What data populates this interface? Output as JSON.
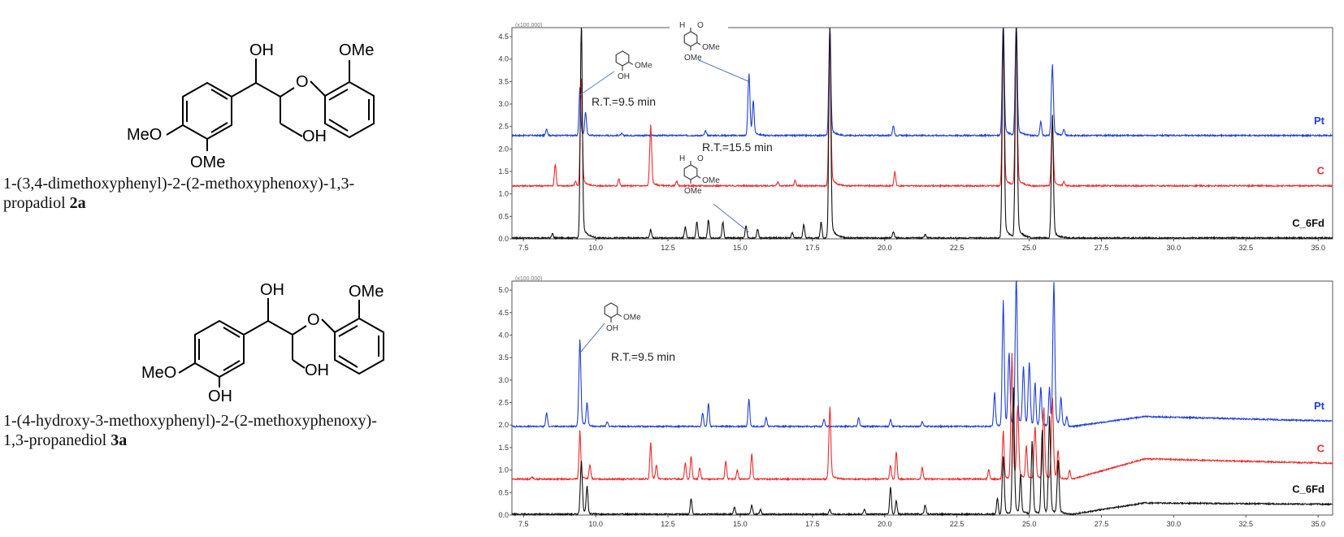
{
  "structures": [
    {
      "name_line1": "1-(3,4-dimethoxyphenyl)-2-(2-methoxyphenoxy)-1,3-",
      "name_line2": "propadiol",
      "compound_id": "2a",
      "labels": {
        "oh_top": "OH",
        "ome_ring": "OMe",
        "meo": "MeO",
        "ome_bottom": "OMe",
        "oh_side": "OH",
        "o_ether": "O"
      }
    },
    {
      "name_line1": "1-(4-hydroxy-3-methoxyphenyl)-2-(2-methoxyphenoxy)-",
      "name_line2": "1,3-propanediol",
      "compound_id": "3a",
      "labels": {
        "oh_top": "OH",
        "ome_ring": "OMe",
        "meo": "MeO",
        "oh_bottom": "OH",
        "oh_side": "OH",
        "o_ether": "O"
      }
    }
  ],
  "chart_data": [
    {
      "type": "line",
      "scale_note": "(x100,000)",
      "x_ticks": [
        "7.5",
        "10.0",
        "12.5",
        "15.0",
        "17.5",
        "20.0",
        "22.5",
        "25.0",
        "27.5",
        "30.0",
        "32.5",
        "35.0"
      ],
      "y_ticks": [
        "0.0",
        "0.5",
        "1.0",
        "1.5",
        "2.0",
        "2.5",
        "3.0",
        "3.5",
        "4.0",
        "4.5"
      ],
      "xlim": [
        7.1,
        35.5
      ],
      "ylim": [
        0,
        4.7
      ],
      "annotations": [
        "R.T.=9.5 min",
        "R.T.=15.5 min"
      ],
      "inset_labels": {
        "guaiacol_ome": "OMe",
        "guaiacol_oh": "OH",
        "veratr_ome1": "OMe",
        "veratr_ome2": "OMe",
        "veratr_h": "H",
        "veratr_o": "O",
        "v2_ome1": "OMe",
        "v2_ome2": "OMe",
        "v2_h": "H",
        "v2_o": "O"
      },
      "series": [
        {
          "name": "Pt",
          "color": "#1f3fd6",
          "baseline": 2.3,
          "peaks": [
            [
              8.3,
              0.15
            ],
            [
              9.45,
              1.0
            ],
            [
              9.65,
              0.5
            ],
            [
              10.9,
              0.04
            ],
            [
              13.8,
              0.1
            ],
            [
              15.3,
              1.3
            ],
            [
              15.45,
              0.7
            ],
            [
              18.1,
              2.3
            ],
            [
              20.3,
              0.22
            ],
            [
              24.1,
              2.4
            ],
            [
              24.55,
              2.4
            ],
            [
              25.4,
              0.3
            ],
            [
              25.8,
              1.5
            ],
            [
              26.2,
              0.12
            ]
          ]
        },
        {
          "name": "C",
          "color": "#ee2a2a",
          "baseline": 1.18,
          "peaks": [
            [
              8.6,
              0.48
            ],
            [
              9.3,
              0.1
            ],
            [
              9.5,
              2.2
            ],
            [
              10.8,
              0.15
            ],
            [
              11.9,
              1.25
            ],
            [
              12.8,
              0.1
            ],
            [
              16.3,
              0.08
            ],
            [
              16.9,
              0.12
            ],
            [
              18.1,
              3.3
            ],
            [
              20.35,
              0.3
            ],
            [
              24.1,
              3.2
            ],
            [
              24.55,
              3.3
            ],
            [
              25.8,
              1.35
            ],
            [
              26.2,
              0.08
            ]
          ]
        },
        {
          "name": "C_6Fd",
          "color": "#111111",
          "baseline": 0.02,
          "peaks": [
            [
              8.5,
              0.1
            ],
            [
              9.5,
              4.55
            ],
            [
              11.9,
              0.18
            ],
            [
              13.1,
              0.25
            ],
            [
              13.5,
              0.35
            ],
            [
              13.9,
              0.4
            ],
            [
              14.4,
              0.35
            ],
            [
              15.2,
              0.28
            ],
            [
              15.6,
              0.2
            ],
            [
              16.8,
              0.12
            ],
            [
              17.2,
              0.3
            ],
            [
              17.8,
              0.35
            ],
            [
              18.1,
              4.45
            ],
            [
              20.3,
              0.14
            ],
            [
              21.4,
              0.08
            ],
            [
              24.1,
              4.6
            ],
            [
              24.55,
              4.6
            ],
            [
              25.8,
              2.6
            ]
          ]
        }
      ]
    },
    {
      "type": "line",
      "scale_note": "(x100,000)",
      "x_ticks": [
        "7.5",
        "10.0",
        "12.5",
        "15.0",
        "17.5",
        "20.0",
        "22.5",
        "25.0",
        "27.5",
        "30.0",
        "32.5",
        "35.0"
      ],
      "y_ticks": [
        "0.0",
        "0.5",
        "1.0",
        "1.5",
        "2.0",
        "2.5",
        "3.0",
        "3.5",
        "4.0",
        "4.5",
        "5.0"
      ],
      "xlim": [
        7.1,
        35.5
      ],
      "ylim": [
        0,
        5.2
      ],
      "annotations": [
        "R.T.=9.5 min"
      ],
      "inset_labels": {
        "guaiacol_ome": "OMe",
        "guaiacol_oh": "OH"
      },
      "series": [
        {
          "name": "Pt",
          "color": "#1f3fd6",
          "baseline": 1.97,
          "drift": [
            [
              26.5,
              0.2
            ],
            [
              29,
              0.22
            ],
            [
              35.5,
              0.12
            ]
          ],
          "peaks": [
            [
              8.3,
              0.3
            ],
            [
              9.45,
              1.8
            ],
            [
              9.7,
              0.5
            ],
            [
              10.4,
              0.1
            ],
            [
              13.7,
              0.3
            ],
            [
              13.9,
              0.5
            ],
            [
              15.3,
              0.6
            ],
            [
              15.9,
              0.2
            ],
            [
              17.9,
              0.15
            ],
            [
              19.1,
              0.2
            ],
            [
              20.2,
              0.15
            ],
            [
              21.3,
              0.1
            ],
            [
              23.8,
              0.7
            ],
            [
              24.1,
              2.6
            ],
            [
              24.3,
              1.5
            ],
            [
              24.55,
              3.2
            ],
            [
              24.8,
              1.2
            ],
            [
              25.0,
              1.3
            ],
            [
              25.2,
              0.9
            ],
            [
              25.4,
              0.8
            ],
            [
              25.7,
              0.8
            ],
            [
              25.85,
              3.0
            ],
            [
              26.1,
              0.6
            ],
            [
              26.3,
              0.2
            ]
          ]
        },
        {
          "name": "C",
          "color": "#ee2a2a",
          "baseline": 0.8,
          "drift": [
            [
              26.5,
              0.2
            ],
            [
              29,
              0.45
            ],
            [
              35.5,
              0.35
            ]
          ],
          "peaks": [
            [
              7.8,
              0.05
            ],
            [
              9.45,
              1.0
            ],
            [
              9.8,
              0.3
            ],
            [
              11.9,
              0.75
            ],
            [
              12.1,
              0.3
            ],
            [
              13.1,
              0.35
            ],
            [
              13.3,
              0.5
            ],
            [
              13.6,
              0.25
            ],
            [
              14.5,
              0.4
            ],
            [
              14.9,
              0.2
            ],
            [
              15.4,
              0.55
            ],
            [
              18.1,
              1.5
            ],
            [
              20.2,
              0.3
            ],
            [
              20.4,
              0.6
            ],
            [
              21.3,
              0.25
            ],
            [
              23.6,
              0.2
            ],
            [
              24.1,
              1.0
            ],
            [
              24.4,
              2.6
            ],
            [
              24.6,
              1.5
            ],
            [
              24.9,
              0.7
            ],
            [
              25.2,
              1.1
            ],
            [
              25.5,
              1.5
            ],
            [
              25.8,
              1.7
            ],
            [
              26.0,
              0.6
            ],
            [
              26.4,
              0.2
            ]
          ]
        },
        {
          "name": "C_6Fd",
          "color": "#111111",
          "baseline": 0.02,
          "drift": [
            [
              26.5,
              0.08
            ],
            [
              29,
              0.25
            ],
            [
              35.5,
              0.22
            ]
          ],
          "peaks": [
            [
              9.5,
              1.1
            ],
            [
              9.7,
              0.6
            ],
            [
              13.3,
              0.35
            ],
            [
              14.8,
              0.15
            ],
            [
              15.4,
              0.2
            ],
            [
              15.7,
              0.1
            ],
            [
              18.1,
              0.1
            ],
            [
              19.3,
              0.12
            ],
            [
              20.2,
              0.6
            ],
            [
              20.4,
              0.3
            ],
            [
              21.4,
              0.2
            ],
            [
              23.9,
              0.35
            ],
            [
              24.1,
              1.2
            ],
            [
              24.45,
              2.6
            ],
            [
              24.7,
              0.8
            ],
            [
              25.1,
              1.5
            ],
            [
              25.45,
              1.8
            ],
            [
              25.7,
              2.0
            ],
            [
              26.0,
              1.1
            ]
          ]
        }
      ]
    }
  ]
}
